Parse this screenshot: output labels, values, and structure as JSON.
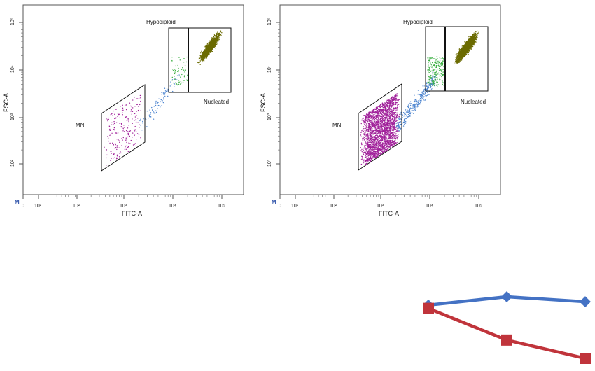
{
  "chart_data": [
    {
      "type": "scatter",
      "xlabel": "FITC-A",
      "ylabel": "FSC-A",
      "x_scale": "log",
      "y_scale": "log",
      "xlim": [
        0,
        200000
      ],
      "ylim": [
        30,
        200000
      ],
      "x_tick_labels": [
        "0",
        "10¹",
        "10²",
        "10³",
        "10⁴",
        "10⁵"
      ],
      "y_tick_labels": [
        "10²",
        "10³",
        "10⁴",
        "10⁵"
      ],
      "corner_mark": "M",
      "gates": [
        {
          "label": "MN",
          "shape": "parallelogram"
        },
        {
          "label": "Hypodiploid",
          "shape": "rectangle"
        },
        {
          "label": "Nucleated",
          "shape": "rectangle"
        }
      ],
      "populations": [
        {
          "gate": "MN",
          "color": "#a0209a",
          "approx_events": 220
        },
        {
          "gate": "transition",
          "color": "#4f86d0",
          "approx_events": 90
        },
        {
          "gate": "Hypodiploid",
          "color": "#3cb043",
          "approx_events": 60
        },
        {
          "gate": "Nucleated",
          "color": "#6b6b00",
          "approx_events": 1800
        }
      ]
    },
    {
      "type": "scatter",
      "xlabel": "FITC-A",
      "ylabel": "FSC-A",
      "x_scale": "log",
      "y_scale": "log",
      "xlim": [
        0,
        200000
      ],
      "ylim": [
        30,
        200000
      ],
      "x_tick_labels": [
        "0",
        "10¹",
        "10²",
        "10³",
        "10⁴",
        "10⁵"
      ],
      "y_tick_labels": [
        "10²",
        "10³",
        "10⁴",
        "10⁵"
      ],
      "corner_mark": "M",
      "gates": [
        {
          "label": "MN",
          "shape": "parallelogram"
        },
        {
          "label": "Hypodiploid",
          "shape": "rectangle"
        },
        {
          "label": "Nucleated",
          "shape": "rectangle"
        }
      ],
      "populations": [
        {
          "gate": "MN",
          "color": "#a0209a",
          "approx_events": 2500
        },
        {
          "gate": "transition",
          "color": "#4f86d0",
          "approx_events": 350
        },
        {
          "gate": "Hypodiploid",
          "color": "#3cb043",
          "approx_events": 250
        },
        {
          "gate": "Nucleated",
          "color": "#6b6b00",
          "approx_events": 3500
        }
      ]
    },
    {
      "type": "line",
      "series": [
        {
          "color": "#4472c4",
          "marker": "diamond",
          "values": [
            0.9,
            1.0,
            0.94
          ]
        },
        {
          "color": "#c0343b",
          "marker": "square",
          "values": [
            0.86,
            0.48,
            0.26
          ]
        }
      ]
    }
  ]
}
